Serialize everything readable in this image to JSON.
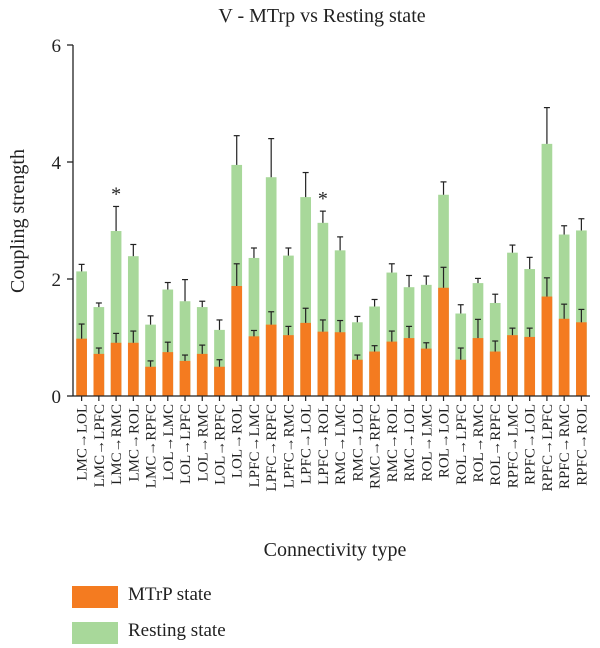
{
  "chart_data": {
    "type": "bar",
    "stacked": true,
    "title": "V - MTrp vs Resting state",
    "xlabel": "Connectivity type",
    "ylabel": "Coupling strength",
    "ylim": [
      0,
      6
    ],
    "yticks": [
      0,
      2,
      4,
      6
    ],
    "categories": [
      "LMC→LOL",
      "LMC→LPFC",
      "LMC→RMC",
      "LMC→ROL",
      "LMC→RPFC",
      "LOL→LMC",
      "LOL→LPFC",
      "LOL→RMC",
      "LOL→RPFC",
      "LOL→ROL",
      "LPFC→LMC",
      "LPFC→RPFC",
      "LPFC→RMC",
      "LPFC→LOL",
      "LPFC→ROL",
      "RMC→LMC",
      "RMC→LOL",
      "RMC→RPFC",
      "RMC→ROL",
      "RMC→LOL",
      "ROL→LMC",
      "ROL→LOL",
      "ROL→LPFC",
      "ROL→RMC",
      "ROL→RPFC",
      "RPFC→LMC",
      "RPFC→LOL",
      "RPFC→LPFC",
      "RPFC→RMC",
      "RPFC→ROL"
    ],
    "series": [
      {
        "name": "MTrP state",
        "color": "#f47b20",
        "values": [
          0.98,
          0.72,
          0.91,
          0.91,
          0.5,
          0.75,
          0.6,
          0.72,
          0.5,
          1.88,
          1.02,
          1.22,
          1.04,
          1.25,
          1.1,
          1.09,
          0.62,
          0.76,
          0.93,
          0.99,
          0.81,
          1.85,
          0.62,
          0.99,
          0.76,
          1.04,
          1.01,
          1.7,
          1.32,
          1.26
        ],
        "errors": [
          0.25,
          0.1,
          0.16,
          0.2,
          0.1,
          0.17,
          0.1,
          0.15,
          0.12,
          0.38,
          0.1,
          0.22,
          0.15,
          0.25,
          0.2,
          0.2,
          0.08,
          0.1,
          0.18,
          0.2,
          0.1,
          0.35,
          0.2,
          0.32,
          0.18,
          0.12,
          0.15,
          0.32,
          0.25,
          0.22
        ]
      },
      {
        "name": "Resting state",
        "color": "#a8d89a",
        "values": [
          2.13,
          1.52,
          2.82,
          2.39,
          1.22,
          1.82,
          1.62,
          1.52,
          1.13,
          3.95,
          2.36,
          3.74,
          2.4,
          3.4,
          2.96,
          2.49,
          1.26,
          1.53,
          2.11,
          1.86,
          1.9,
          3.44,
          1.41,
          1.93,
          1.59,
          2.45,
          2.17,
          4.31,
          2.76,
          2.83
        ],
        "errors": [
          0.12,
          0.07,
          0.42,
          0.2,
          0.15,
          0.12,
          0.37,
          0.1,
          0.17,
          0.5,
          0.17,
          0.66,
          0.13,
          0.42,
          0.2,
          0.23,
          0.1,
          0.12,
          0.15,
          0.2,
          0.15,
          0.22,
          0.15,
          0.08,
          0.15,
          0.13,
          0.2,
          0.62,
          0.15,
          0.2
        ]
      }
    ],
    "annotations": [
      {
        "category_index": 2,
        "text": "*"
      },
      {
        "category_index": 14,
        "text": "*"
      }
    ],
    "grid": false,
    "legend_placement": "bottom-left"
  }
}
